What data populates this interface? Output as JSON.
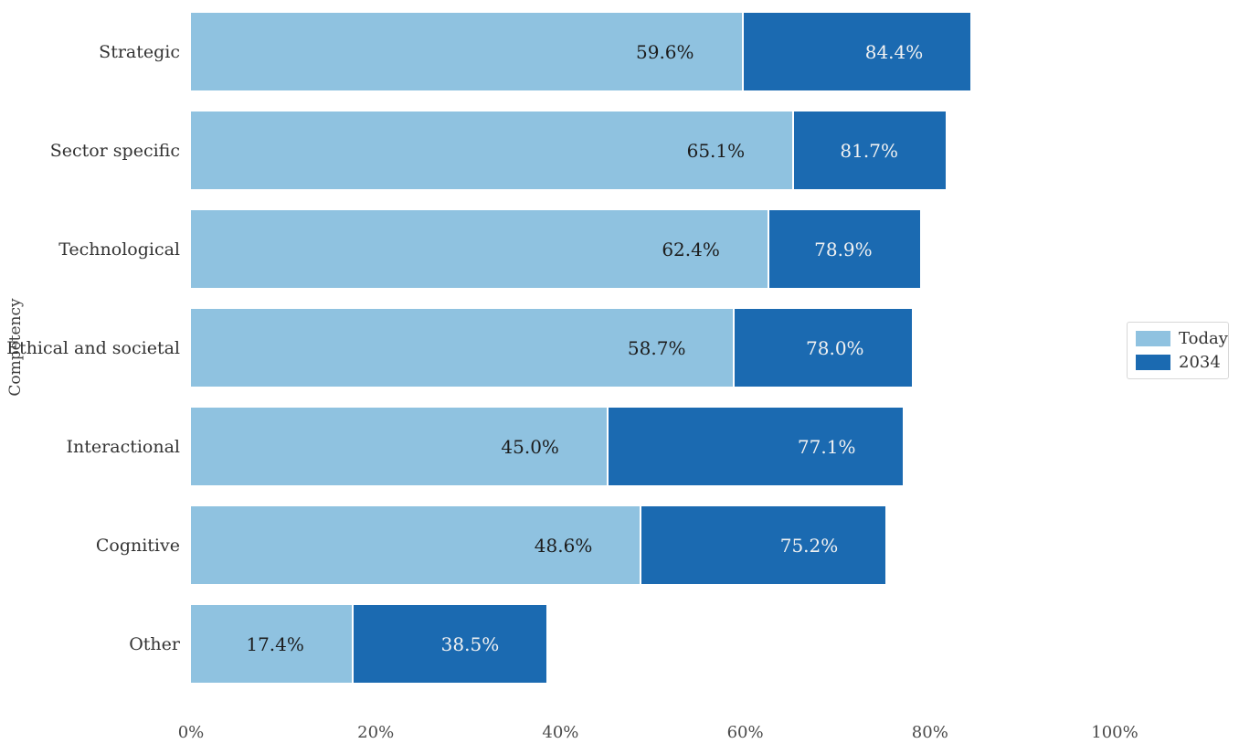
{
  "figure": {
    "background_color": "#ffffff"
  },
  "chart_data": {
    "type": "bar",
    "orientation": "horizontal",
    "title": "",
    "xlabel": "",
    "ylabel": "Competency",
    "grid": "off",
    "xlim": [
      0,
      100
    ],
    "xtick_values": [
      0,
      20,
      40,
      60,
      80,
      100
    ],
    "xtick_labels": [
      "0%",
      "20%",
      "40%",
      "60%",
      "80%",
      "100%"
    ],
    "categories": [
      "Strategic",
      "Sector specific",
      "Technological",
      "Ethical and societal",
      "Interactional",
      "Cognitive",
      "Other"
    ],
    "series": [
      {
        "name": "Today",
        "color": "#8FC2E0",
        "label_color": "#1c1c1c",
        "values": [
          59.6,
          65.1,
          62.4,
          58.7,
          45.0,
          48.6,
          17.4
        ],
        "labels": [
          "59.6%",
          "65.1%",
          "62.4%",
          "58.7%",
          "45.0%",
          "48.6%",
          "17.4%"
        ]
      },
      {
        "name": "2034",
        "color": "#1B6AB1",
        "label_color": "#f2f2f2",
        "values": [
          84.4,
          81.7,
          78.9,
          78.0,
          77.1,
          75.2,
          38.5
        ],
        "labels": [
          "84.4%",
          "81.7%",
          "78.9%",
          "78.0%",
          "77.1%",
          "75.2%",
          "38.5%"
        ]
      }
    ],
    "legend_position": "right-middle",
    "legend_entries": [
      "Today",
      "2034"
    ]
  }
}
